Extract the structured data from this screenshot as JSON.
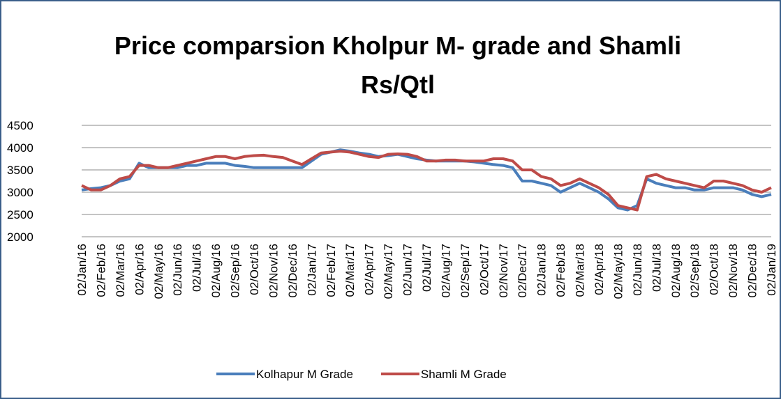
{
  "chart_data": {
    "type": "line",
    "title": "Price comparsion  Kholpur M- grade and Shamli Rs/Qtl",
    "categories": [
      "02/Jan/16",
      null,
      "02/Feb/16",
      null,
      "02/Mar/16",
      null,
      "02/Apr/16",
      null,
      "02/May/16",
      null,
      "02/Jun/16",
      null,
      "02/Jul/16",
      null,
      "02/Aug/16",
      null,
      "02/Sep/16",
      null,
      "02/Oct/16",
      null,
      "02/Nov/16",
      null,
      "02/Dec/16",
      null,
      "02/Jan/17",
      null,
      "02/Feb/17",
      null,
      "02/Mar/17",
      null,
      "02/Apr/17",
      null,
      "02/May/17",
      null,
      "02/Jun/17",
      null,
      "02/Jul/17",
      null,
      "02/Aug/17",
      null,
      "02/Sep/17",
      null,
      "02/Oct/17",
      null,
      "02/Nov/17",
      null,
      "02/Dec/17",
      null,
      "02/Jan/18",
      null,
      "02/Feb/18",
      null,
      "02/Mar/18",
      null,
      "02/Apr/18",
      null,
      "02/May/18",
      null,
      "02/Jun/18",
      null,
      "02/Jul/18",
      null,
      "02/Aug/18",
      null,
      "02/Sep/18",
      null,
      "02/Oct/18",
      null,
      "02/Nov/18",
      null,
      "02/Dec/18",
      null,
      "02/Jan/19"
    ],
    "series": [
      {
        "name": "Kolhapur M Grade",
        "color": "#4a7ebb",
        "values": [
          3050,
          3080,
          3100,
          3150,
          3250,
          3300,
          3650,
          3550,
          3550,
          3550,
          3550,
          3600,
          3600,
          3650,
          3650,
          3650,
          3600,
          3580,
          3550,
          3550,
          3550,
          3550,
          3550,
          3550,
          3700,
          3850,
          3900,
          3950,
          3920,
          3880,
          3850,
          3800,
          3820,
          3850,
          3800,
          3750,
          3720,
          3700,
          3700,
          3700,
          3700,
          3680,
          3650,
          3620,
          3600,
          3550,
          3250,
          3250,
          3200,
          3150,
          3000,
          3100,
          3200,
          3100,
          3000,
          2850,
          2650,
          2600,
          2700,
          3300,
          3200,
          3150,
          3100,
          3100,
          3050,
          3050,
          3100,
          3100,
          3100,
          3050,
          2950,
          2900,
          2950
        ]
      },
      {
        "name": "Shamli M Grade",
        "color": "#be4b48",
        "values": [
          3150,
          3050,
          3050,
          3150,
          3300,
          3350,
          3600,
          3600,
          3550,
          3550,
          3600,
          3650,
          3700,
          3750,
          3800,
          3800,
          3750,
          3800,
          3820,
          3830,
          3800,
          3780,
          3700,
          3620,
          3750,
          3880,
          3900,
          3920,
          3900,
          3850,
          3800,
          3780,
          3850,
          3860,
          3850,
          3800,
          3700,
          3700,
          3720,
          3720,
          3700,
          3700,
          3700,
          3750,
          3750,
          3700,
          3500,
          3500,
          3350,
          3300,
          3150,
          3200,
          3300,
          3200,
          3100,
          2950,
          2700,
          2650,
          2600,
          3350,
          3400,
          3300,
          3250,
          3200,
          3150,
          3100,
          3250,
          3250,
          3200,
          3150,
          3050,
          3000,
          3100
        ]
      }
    ],
    "ylim": [
      2000,
      4500
    ],
    "yticks": [
      2000,
      2500,
      3000,
      3500,
      4000,
      4500
    ],
    "grid": true,
    "legend": "bottom"
  }
}
